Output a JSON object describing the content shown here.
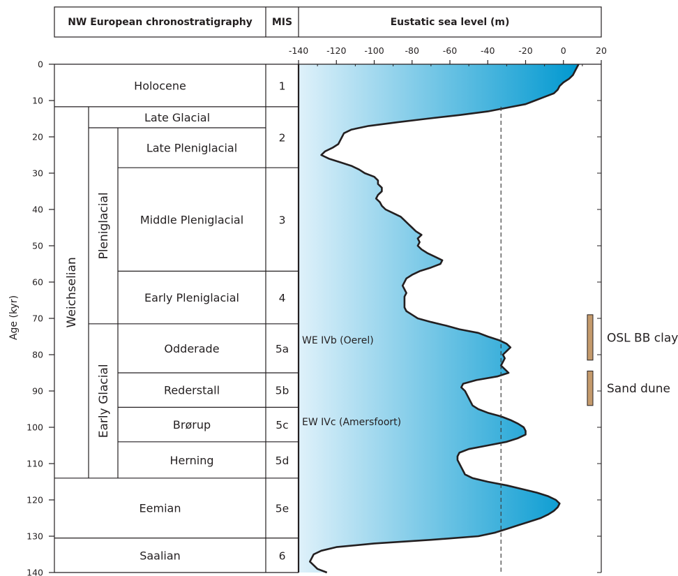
{
  "header": {
    "chronostratigraphy": "NW European chronostratigraphy",
    "mis": "MIS",
    "sea_level": "Eustatic sea level (m)"
  },
  "stages": [
    {
      "name": "Holocene",
      "mis": "1",
      "top": 0,
      "bottom": 11.7
    },
    {
      "name": "Late Glacial",
      "mis": "",
      "top": 11.7,
      "bottom": 17.5
    },
    {
      "name": "Late Pleniglacial",
      "mis": "",
      "top": 17.5,
      "bottom": 28.5
    },
    {
      "name": "Middle Pleniglacial",
      "mis": "3",
      "top": 28.5,
      "bottom": 57
    },
    {
      "name": "Early Pleniglacial",
      "mis": "4",
      "top": 57,
      "bottom": 71.5
    },
    {
      "name": "Odderade",
      "mis": "5a",
      "top": 71.5,
      "bottom": 85
    },
    {
      "name": "Rederstall",
      "mis": "5b",
      "top": 85,
      "bottom": 94.5
    },
    {
      "name": "Brørup",
      "mis": "5c",
      "top": 94.5,
      "bottom": 104
    },
    {
      "name": "Herning",
      "mis": "5d",
      "top": 104,
      "bottom": 114
    },
    {
      "name": "Eemian",
      "mis": "5e",
      "top": 114,
      "bottom": 130.5
    },
    {
      "name": "Saalian",
      "mis": "6",
      "top": 130.5,
      "bottom": 140
    }
  ],
  "mis_2": {
    "label": "2",
    "top": 11.7,
    "bottom": 28.5
  },
  "groups": {
    "weichselian": {
      "label": "Weichselian",
      "top": 11.7,
      "bottom": 114
    },
    "pleniglacial": {
      "label": "Pleniglacial",
      "top": 17.5,
      "bottom": 71.5
    },
    "early_glacial": {
      "label": "Early Glacial",
      "top": 71.5,
      "bottom": 114
    }
  },
  "chart_data": {
    "type": "area",
    "ylabel": "Age (kyr)",
    "xlabel": "Eustatic sea level (m)",
    "xlim": [
      -140,
      20
    ],
    "ylim": [
      0,
      140
    ],
    "x_ticks": [
      -140,
      -120,
      -100,
      -80,
      -60,
      -40,
      -20,
      0,
      20
    ],
    "y_ticks": [
      0,
      10,
      20,
      30,
      40,
      50,
      60,
      70,
      80,
      90,
      100,
      110,
      120,
      130,
      140
    ],
    "reference_line": {
      "sea_level": -33,
      "style": "dashed"
    },
    "fill": {
      "from": "#dff1fa",
      "to": "#0098d0",
      "outline": "#231f20"
    },
    "series": [
      {
        "age": [
          0,
          1,
          2,
          3,
          4,
          5,
          6,
          7,
          8,
          9,
          10,
          11,
          12,
          13,
          14,
          15,
          16,
          17,
          18,
          19,
          20,
          21,
          22,
          23,
          24,
          25,
          26,
          27,
          28,
          29,
          30,
          31,
          32,
          33,
          34,
          35,
          36,
          37,
          38,
          39,
          40,
          41,
          42,
          43,
          44,
          45,
          46,
          47,
          48,
          49,
          50,
          51,
          52,
          53,
          54,
          55,
          56,
          57,
          58,
          59,
          60,
          61,
          62,
          63,
          64,
          65,
          66,
          67,
          68,
          69,
          70,
          71,
          72,
          73,
          74,
          75,
          76,
          77,
          78,
          79,
          80,
          81,
          82,
          83,
          84,
          85,
          86,
          87,
          88,
          89,
          90,
          91,
          92,
          93,
          94,
          95,
          96,
          97,
          98,
          99,
          100,
          101,
          102,
          103,
          104,
          105,
          106,
          107,
          108,
          109,
          110,
          111,
          112,
          113,
          114,
          115,
          116,
          117,
          118,
          119,
          120,
          121,
          122,
          123,
          124,
          125,
          126,
          127,
          128,
          129,
          130,
          131,
          132,
          133,
          134,
          135,
          136,
          137,
          138,
          139,
          140
        ],
        "sea_level": [
          8,
          7,
          6,
          5,
          3,
          0,
          -2,
          -3,
          -5,
          -10,
          -15,
          -20,
          -30,
          -40,
          -55,
          -72,
          -88,
          -103,
          -112,
          -116,
          -117,
          -118,
          -119,
          -122,
          -126,
          -128,
          -124,
          -118,
          -112,
          -108,
          -105,
          -100,
          -98,
          -98,
          -96,
          -96,
          -98,
          -99,
          -97,
          -96,
          -94,
          -90,
          -86,
          -84,
          -82,
          -80,
          -78,
          -75,
          -77,
          -76,
          -77,
          -75,
          -72,
          -68,
          -64,
          -65,
          -70,
          -76,
          -80,
          -83,
          -84,
          -85,
          -84,
          -83,
          -84,
          -84,
          -84,
          -84,
          -83,
          -80,
          -77,
          -70,
          -62,
          -55,
          -45,
          -40,
          -34,
          -30,
          -28,
          -30,
          -32,
          -31,
          -32,
          -33,
          -31,
          -29,
          -35,
          -46,
          -53,
          -54,
          -52,
          -51,
          -50,
          -49,
          -48,
          -45,
          -40,
          -33,
          -28,
          -24,
          -21,
          -20,
          -20,
          -24,
          -30,
          -40,
          -50,
          -55,
          -56,
          -56,
          -55,
          -54,
          -53,
          -52,
          -48,
          -40,
          -30,
          -22,
          -14,
          -8,
          -4,
          -2,
          -3,
          -5,
          -8,
          -12,
          -18,
          -24,
          -30,
          -36,
          -45,
          -70,
          -100,
          -120,
          -128,
          -132,
          -133,
          -134,
          -132,
          -130,
          -125
        ]
      }
    ],
    "annotations": [
      {
        "label": "WE IVb (Oerel)",
        "age": 76
      },
      {
        "label": "EW IVc (Amersfoort)",
        "age": 98.5
      }
    ],
    "markers": [
      {
        "label": "OSL BB clay",
        "top": 69,
        "bottom": 81.5,
        "color": "#c49a6c"
      },
      {
        "label": "Sand dune",
        "top": 84.5,
        "bottom": 94,
        "color": "#c49a6c"
      }
    ]
  }
}
